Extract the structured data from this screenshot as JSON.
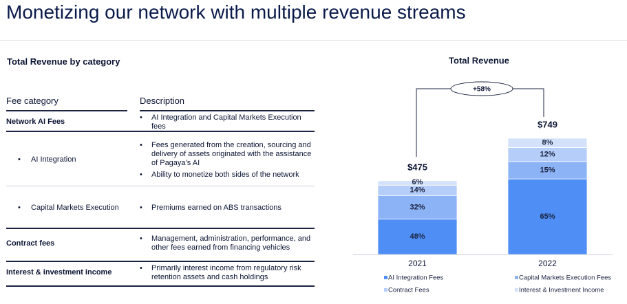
{
  "header": {
    "title": "Monetizing our network with multiple revenue streams"
  },
  "table": {
    "title": "Total Revenue by category",
    "columns": [
      "Fee category",
      "Description"
    ],
    "rows": [
      {
        "category": "Network AI Fees",
        "description": [
          "AI Integration and Capital Markets Execution fees"
        ]
      },
      {
        "category": "AI Integration",
        "description": [
          "Fees generated from the creation, sourcing and delivery of assets originated with the assistance of Pagaya’s AI",
          "Ability to monetize both sides of the network"
        ]
      },
      {
        "category": "Capital Markets Execution",
        "description": [
          "Premiums earned on ABS transactions"
        ]
      },
      {
        "category": "Contract fees",
        "description": [
          "Management, administration, performance, and other fees earned from financing vehicles"
        ]
      },
      {
        "category": "Interest & investment income",
        "description": [
          "Primarily interest income from regulatory risk retention assets and cash holdings"
        ]
      }
    ]
  },
  "chart_data": {
    "type": "stacked_bar",
    "title": "Total Revenue",
    "categories": [
      "2021",
      "2022"
    ],
    "totals": {
      "values": [
        475,
        749
      ],
      "value_labels": [
        "$475",
        "$749"
      ]
    },
    "annotation": "+58%",
    "series": [
      {
        "name": "AI Integration Fees",
        "color": "#4f8ef5",
        "values": [
          48,
          65
        ],
        "value_labels": [
          "48%",
          "65%"
        ]
      },
      {
        "name": "Capital Markets Execution Fees",
        "color": "#8db3f7",
        "values": [
          32,
          15
        ],
        "value_labels": [
          "32%",
          "15%"
        ]
      },
      {
        "name": "Contract Fees",
        "color": "#b5cdf9",
        "values": [
          14,
          12
        ],
        "value_labels": [
          "14%",
          "12%"
        ]
      },
      {
        "name": "Interest & Investment Income",
        "color": "#d3e1fb",
        "values": [
          6,
          8
        ],
        "value_labels": [
          "6%",
          "8%"
        ]
      }
    ]
  }
}
